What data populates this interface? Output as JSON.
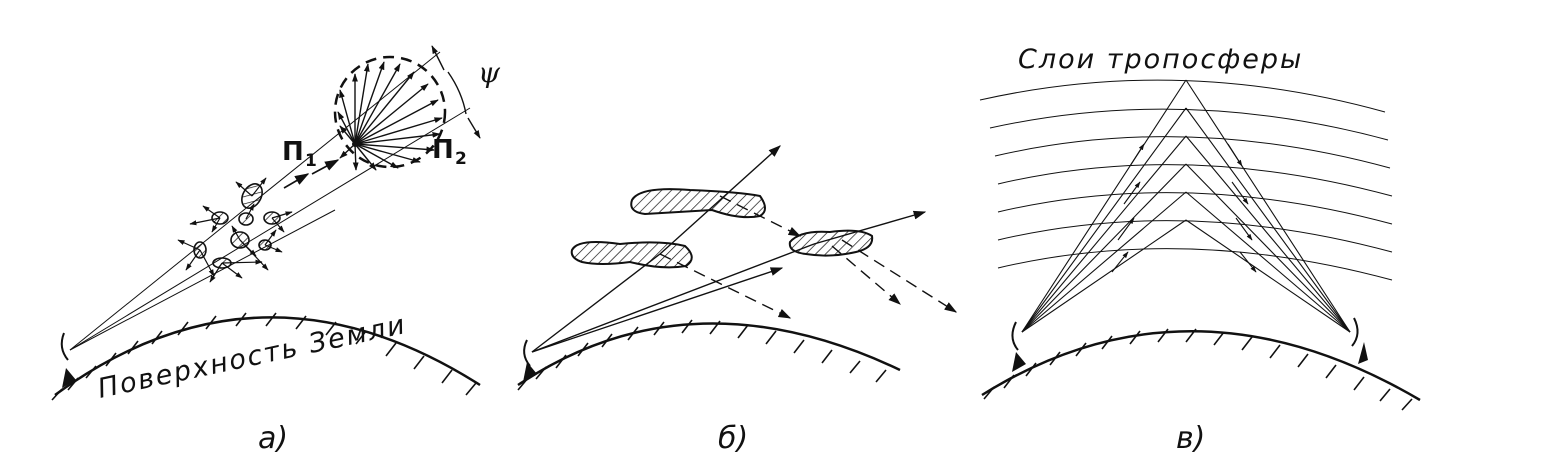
{
  "panels": [
    {
      "id": "a",
      "label": "а)",
      "earth_label": "Поверхность Земли",
      "symbols": {
        "p1": "П",
        "p1_sub": "1",
        "p2": "П",
        "p2_sub": "2",
        "angle": "ψ"
      }
    },
    {
      "id": "b",
      "label": "б)"
    },
    {
      "id": "v",
      "label": "в)",
      "layers_label": "Слои тропосферы"
    }
  ],
  "colors": {
    "ink": "#111111",
    "background": "#ffffff"
  }
}
